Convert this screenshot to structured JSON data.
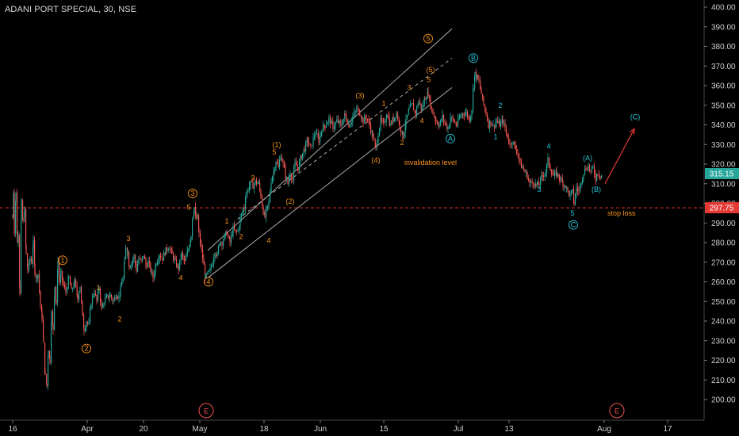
{
  "chart_data": {
    "type": "candlestick",
    "title": "ADANI PORT SPECIAL, 30, NSE",
    "colors": {
      "up": "#26a69a",
      "down": "#ef5350",
      "orange_wave": "#f7931a",
      "teal_wave": "#26c6da",
      "stop_line": "#e53935",
      "arrow": "#e53935"
    },
    "y_axis": {
      "side": "right",
      "ylim": [
        193,
        403
      ],
      "ticks": [
        "400.00",
        "390.00",
        "380.00",
        "370.00",
        "360.00",
        "350.00",
        "340.00",
        "330.00",
        "320.00",
        "310.00",
        "300.00",
        "290.00",
        "280.00",
        "270.00",
        "260.00",
        "250.00",
        "240.00",
        "230.00",
        "220.00",
        "210.00",
        "200.00"
      ]
    },
    "x_axis": {
      "ticks": [
        "16",
        "Apr",
        "20",
        "May",
        "18",
        "Jun",
        "15",
        "Jul",
        "13",
        "Aug",
        "17"
      ]
    },
    "price_labels": [
      {
        "value": 315.15,
        "text": "315.15",
        "color": "#26a69a"
      },
      {
        "value": 297.75,
        "text": "297.75",
        "color": "#e53935"
      }
    ],
    "stop_loss": {
      "value": 297.75,
      "label": "stop loss"
    },
    "invalidation_label": "invalidation level",
    "price_path": [
      [
        16,
        293
      ],
      [
        17,
        306
      ],
      [
        18,
        286
      ],
      [
        20,
        305
      ],
      [
        22,
        280
      ],
      [
        23,
        285
      ],
      [
        25,
        255
      ],
      [
        27,
        300
      ],
      [
        29,
        290
      ],
      [
        31,
        296
      ],
      [
        33,
        274
      ],
      [
        35,
        266
      ],
      [
        38,
        272
      ],
      [
        40,
        270
      ],
      [
        42,
        280
      ],
      [
        44,
        265
      ],
      [
        46,
        262
      ],
      [
        48,
        264
      ],
      [
        51,
        248
      ],
      [
        53,
        242
      ],
      [
        55,
        228
      ],
      [
        57,
        212
      ],
      [
        59,
        207
      ],
      [
        61,
        226
      ],
      [
        63,
        220
      ],
      [
        65,
        244
      ],
      [
        67,
        236
      ],
      [
        69,
        258
      ],
      [
        71,
        248
      ],
      [
        73,
        270
      ],
      [
        75,
        260
      ],
      [
        77,
        264
      ],
      [
        80,
        258
      ],
      [
        83,
        255
      ],
      [
        87,
        262
      ],
      [
        90,
        255
      ],
      [
        94,
        260
      ],
      [
        98,
        252
      ],
      [
        101,
        258
      ],
      [
        104,
        242
      ],
      [
        106,
        236
      ],
      [
        109,
        240
      ],
      [
        112,
        238
      ],
      [
        115,
        250
      ],
      [
        119,
        255
      ],
      [
        122,
        250
      ],
      [
        125,
        257
      ],
      [
        128,
        246
      ],
      [
        131,
        250
      ],
      [
        135,
        252
      ],
      [
        139,
        253
      ],
      [
        143,
        250
      ],
      [
        147,
        254
      ],
      [
        150,
        252
      ],
      [
        152,
        256
      ],
      [
        155,
        262
      ],
      [
        157,
        270
      ],
      [
        159,
        278
      ],
      [
        161,
        275
      ],
      [
        163,
        268
      ],
      [
        166,
        270
      ],
      [
        169,
        273
      ],
      [
        172,
        266
      ],
      [
        175,
        272
      ],
      [
        178,
        270
      ],
      [
        181,
        274
      ],
      [
        184,
        268
      ],
      [
        187,
        270
      ],
      [
        190,
        266
      ],
      [
        193,
        262
      ],
      [
        197,
        270
      ],
      [
        201,
        274
      ],
      [
        205,
        272
      ],
      [
        209,
        276
      ],
      [
        213,
        278
      ],
      [
        217,
        274
      ],
      [
        221,
        270
      ],
      [
        225,
        267
      ],
      [
        229,
        274
      ],
      [
        233,
        270
      ],
      [
        237,
        276
      ],
      [
        241,
        284
      ],
      [
        243,
        294
      ],
      [
        245,
        298
      ],
      [
        247,
        292
      ],
      [
        249,
        293
      ],
      [
        251,
        284
      ],
      [
        254,
        276
      ],
      [
        257,
        268
      ],
      [
        259,
        262
      ],
      [
        262,
        264
      ],
      [
        265,
        266
      ],
      [
        268,
        270
      ],
      [
        271,
        276
      ],
      [
        274,
        273
      ],
      [
        277,
        281
      ],
      [
        280,
        280
      ],
      [
        283,
        283
      ],
      [
        286,
        285
      ],
      [
        290,
        280
      ],
      [
        294,
        287
      ],
      [
        297,
        285
      ],
      [
        300,
        286
      ],
      [
        303,
        292
      ],
      [
        306,
        296
      ],
      [
        308,
        298
      ],
      [
        310,
        304
      ],
      [
        313,
        308
      ],
      [
        316,
        310
      ],
      [
        319,
        309
      ],
      [
        322,
        311
      ],
      [
        326,
        310
      ],
      [
        329,
        304
      ],
      [
        332,
        296
      ],
      [
        334,
        293
      ],
      [
        336,
        297
      ],
      [
        339,
        300
      ],
      [
        342,
        312
      ],
      [
        345,
        316
      ],
      [
        348,
        322
      ],
      [
        351,
        318
      ],
      [
        354,
        325
      ],
      [
        357,
        320
      ],
      [
        360,
        314
      ],
      [
        363,
        310
      ],
      [
        366,
        316
      ],
      [
        369,
        312
      ],
      [
        372,
        320
      ],
      [
        376,
        318
      ],
      [
        380,
        324
      ],
      [
        384,
        328
      ],
      [
        388,
        332
      ],
      [
        392,
        328
      ],
      [
        395,
        333
      ],
      [
        398,
        336
      ],
      [
        402,
        332
      ],
      [
        406,
        338
      ],
      [
        410,
        340
      ],
      [
        415,
        343
      ],
      [
        420,
        339
      ],
      [
        425,
        342
      ],
      [
        430,
        340
      ],
      [
        435,
        345
      ],
      [
        440,
        340
      ],
      [
        445,
        344
      ],
      [
        450,
        348
      ],
      [
        454,
        346
      ],
      [
        458,
        342
      ],
      [
        462,
        344
      ],
      [
        466,
        340
      ],
      [
        470,
        334
      ],
      [
        474,
        328
      ],
      [
        477,
        336
      ],
      [
        480,
        342
      ],
      [
        484,
        340
      ],
      [
        488,
        346
      ],
      [
        492,
        340
      ],
      [
        496,
        343
      ],
      [
        500,
        346
      ],
      [
        504,
        340
      ],
      [
        508,
        334
      ],
      [
        512,
        342
      ],
      [
        516,
        348
      ],
      [
        520,
        350
      ],
      [
        524,
        346
      ],
      [
        528,
        352
      ],
      [
        532,
        348
      ],
      [
        536,
        354
      ],
      [
        540,
        356
      ],
      [
        543,
        350
      ],
      [
        546,
        346
      ],
      [
        550,
        342
      ],
      [
        554,
        340
      ],
      [
        558,
        344
      ],
      [
        562,
        340
      ],
      [
        565,
        338
      ],
      [
        568,
        344
      ],
      [
        572,
        342
      ],
      [
        576,
        340
      ],
      [
        580,
        344
      ],
      [
        584,
        346
      ],
      [
        588,
        346
      ],
      [
        592,
        343
      ],
      [
        595,
        348
      ],
      [
        597,
        360
      ],
      [
        599,
        366
      ],
      [
        601,
        364
      ],
      [
        604,
        362
      ],
      [
        607,
        356
      ],
      [
        610,
        350
      ],
      [
        613,
        346
      ],
      [
        616,
        340
      ],
      [
        619,
        342
      ],
      [
        622,
        339
      ],
      [
        626,
        342
      ],
      [
        630,
        340
      ],
      [
        634,
        342
      ],
      [
        637,
        338
      ],
      [
        640,
        334
      ],
      [
        643,
        330
      ],
      [
        646,
        332
      ],
      [
        650,
        328
      ],
      [
        653,
        326
      ],
      [
        656,
        320
      ],
      [
        659,
        318
      ],
      [
        662,
        316
      ],
      [
        665,
        314
      ],
      [
        668,
        310
      ],
      [
        672,
        311
      ],
      [
        676,
        309
      ],
      [
        680,
        310
      ],
      [
        684,
        314
      ],
      [
        688,
        316
      ],
      [
        691,
        322
      ],
      [
        694,
        318
      ],
      [
        698,
        314
      ],
      [
        702,
        315
      ],
      [
        706,
        313
      ],
      [
        710,
        310
      ],
      [
        713,
        309
      ],
      [
        716,
        306
      ],
      [
        719,
        304
      ],
      [
        722,
        306
      ],
      [
        724,
        300
      ],
      [
        727,
        308
      ],
      [
        730,
        306
      ],
      [
        733,
        312
      ],
      [
        736,
        316
      ],
      [
        739,
        318
      ],
      [
        742,
        319
      ],
      [
        745,
        316
      ],
      [
        748,
        318
      ],
      [
        751,
        313
      ],
      [
        754,
        316
      ],
      [
        757,
        314
      ],
      [
        760,
        315
      ]
    ],
    "channels": [
      {
        "color": "#ababab",
        "dash": false,
        "pts": [
          [
            262,
            276
          ],
          [
            570,
            389
          ]
        ]
      },
      {
        "color": "#ababab",
        "dash": false,
        "pts": [
          [
            262,
            262
          ],
          [
            570,
            359
          ]
        ]
      },
      {
        "color": "#ababab",
        "dash": true,
        "pts": [
          [
            300,
            292
          ],
          [
            570,
            374
          ]
        ]
      }
    ],
    "arrow": {
      "pts": [
        [
          763,
          310
        ],
        [
          800,
          338
        ]
      ]
    },
    "wave_labels": [
      {
        "t": "1",
        "x": 79,
        "v": 271,
        "c": "o",
        "circ": true
      },
      {
        "t": "2",
        "x": 109,
        "v": 226,
        "c": "o",
        "circ": true
      },
      {
        "t": "1",
        "x": 124,
        "v": 257,
        "c": "o",
        "circ": false
      },
      {
        "t": "2",
        "x": 151,
        "v": 241,
        "c": "o",
        "circ": false
      },
      {
        "t": "3",
        "x": 162,
        "v": 282,
        "c": "o",
        "circ": false
      },
      {
        "t": "4",
        "x": 228,
        "v": 262,
        "c": "o",
        "circ": false
      },
      {
        "t": "3",
        "x": 243,
        "v": 305,
        "c": "o",
        "circ": true
      },
      {
        "t": "5",
        "x": 238,
        "v": 298,
        "c": "o",
        "circ": false
      },
      {
        "t": "4",
        "x": 263,
        "v": 260,
        "c": "o",
        "circ": true
      },
      {
        "t": "1",
        "x": 286,
        "v": 291,
        "c": "o",
        "circ": false
      },
      {
        "t": "2",
        "x": 304,
        "v": 283,
        "c": "o",
        "circ": false
      },
      {
        "t": "3",
        "x": 319,
        "v": 313,
        "c": "o",
        "circ": false
      },
      {
        "t": "4",
        "x": 339,
        "v": 281,
        "c": "o",
        "circ": false
      },
      {
        "t": "(1)",
        "x": 349,
        "v": 330,
        "c": "o",
        "circ": false
      },
      {
        "t": "5",
        "x": 346,
        "v": 326,
        "c": "o",
        "circ": false
      },
      {
        "t": "(2)",
        "x": 366,
        "v": 301,
        "c": "o",
        "circ": false
      },
      {
        "t": "(3)",
        "x": 454,
        "v": 355,
        "c": "o",
        "circ": false
      },
      {
        "t": "1",
        "x": 484,
        "v": 351,
        "c": "o",
        "circ": false
      },
      {
        "t": "(4)",
        "x": 474,
        "v": 322,
        "c": "o",
        "circ": false
      },
      {
        "t": "2",
        "x": 507,
        "v": 331,
        "c": "o",
        "circ": false
      },
      {
        "t": "3",
        "x": 516,
        "v": 359,
        "c": "o",
        "circ": false
      },
      {
        "t": "4",
        "x": 532,
        "v": 342,
        "c": "o",
        "circ": false
      },
      {
        "t": "5",
        "x": 541,
        "v": 363,
        "c": "o",
        "circ": false
      },
      {
        "t": "(5)",
        "x": 543,
        "v": 368,
        "c": "o",
        "circ": false
      },
      {
        "t": "5",
        "x": 540,
        "v": 384,
        "c": "o",
        "circ": true
      },
      {
        "t": "A",
        "x": 568,
        "v": 333,
        "c": "t",
        "circ": true
      },
      {
        "t": "B",
        "x": 597,
        "v": 374,
        "c": "t",
        "circ": true
      },
      {
        "t": "2",
        "x": 631,
        "v": 350,
        "c": "t",
        "circ": false
      },
      {
        "t": "1",
        "x": 625,
        "v": 334,
        "c": "t",
        "circ": false
      },
      {
        "t": "3",
        "x": 680,
        "v": 307,
        "c": "t",
        "circ": false
      },
      {
        "t": "4",
        "x": 692,
        "v": 329,
        "c": "t",
        "circ": false
      },
      {
        "t": "5",
        "x": 722,
        "v": 295,
        "c": "t",
        "circ": false
      },
      {
        "t": "C",
        "x": 723,
        "v": 289,
        "c": "t",
        "circ": true
      },
      {
        "t": "(A)",
        "x": 741,
        "v": 323,
        "c": "t",
        "circ": false
      },
      {
        "t": "(B)",
        "x": 752,
        "v": 307,
        "c": "t",
        "circ": false
      },
      {
        "t": "(C)",
        "x": 801,
        "v": 344,
        "c": "t",
        "circ": false
      }
    ],
    "era_markers": [
      {
        "t": "E",
        "x": 260
      },
      {
        "t": "E",
        "x": 778
      }
    ]
  }
}
